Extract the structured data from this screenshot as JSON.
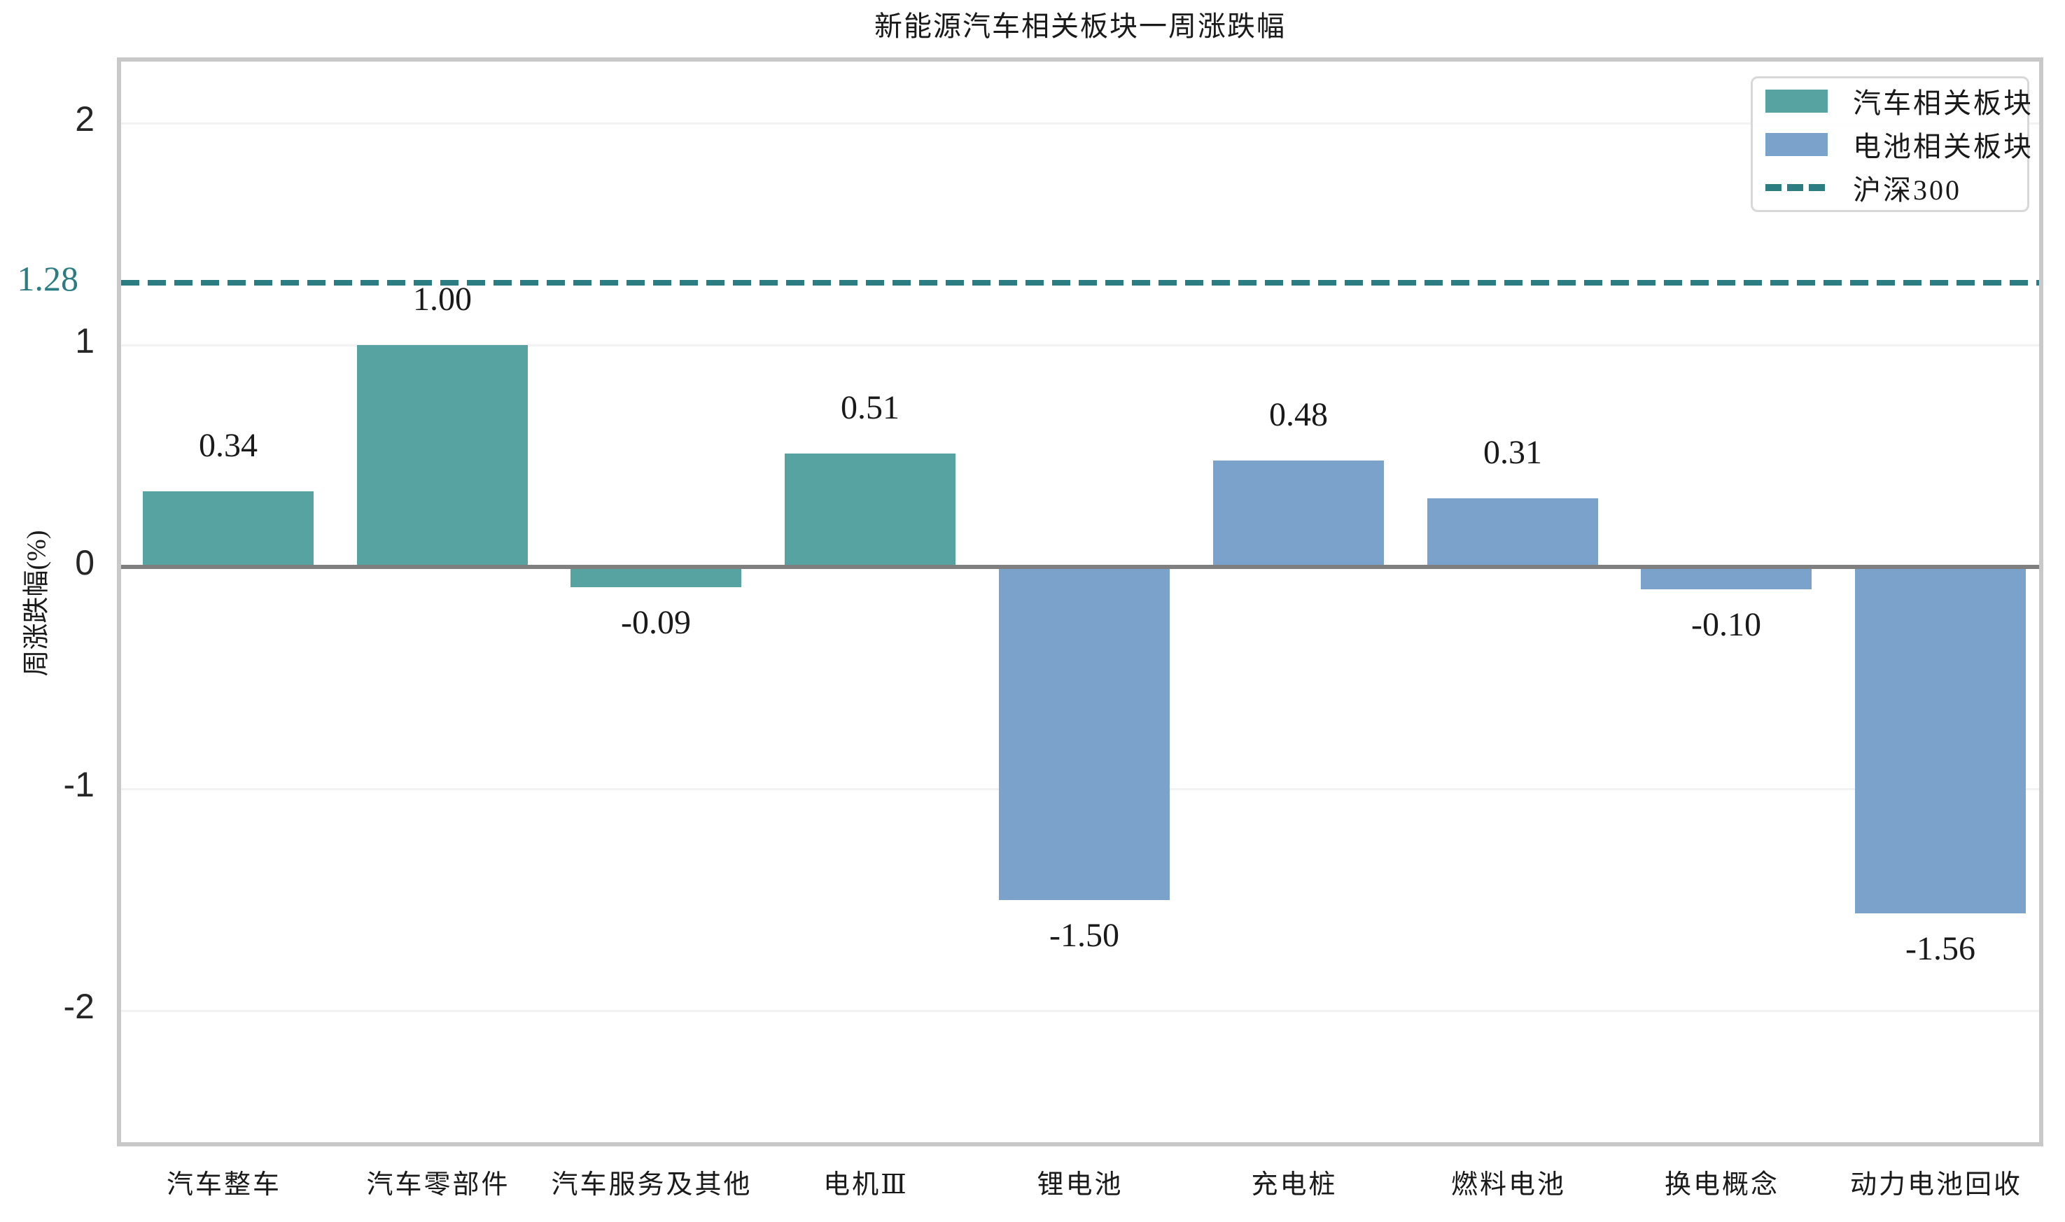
{
  "chart_data": {
    "type": "bar",
    "title": "新能源汽车相关板块一周涨跌幅",
    "ylabel": "周涨跌幅(%)",
    "xlabel": "",
    "y_ticks": [
      2,
      1,
      0,
      -1,
      -2
    ],
    "ylim": [
      -2.63,
      2.28
    ],
    "grid": true,
    "legend_position": "upper right",
    "groups": {
      "auto": {
        "name": "汽车相关板块",
        "color": "#57a3a2"
      },
      "battery": {
        "name": "电池相关板块",
        "color": "#7aa2ca"
      }
    },
    "reference_line": {
      "name": "沪深300",
      "value": 1.28,
      "label": "1.28",
      "color": "#2b7d82",
      "style": "dashed"
    },
    "categories": [
      "汽车整车",
      "汽车零部件",
      "汽车服务及其他",
      "电机Ⅲ",
      "锂电池",
      "充电桩",
      "燃料电池",
      "换电概念",
      "动力电池回收"
    ],
    "bars": [
      {
        "category": "汽车整车",
        "value": 0.34,
        "label": "0.34",
        "group": "auto"
      },
      {
        "category": "汽车零部件",
        "value": 1.0,
        "label": "1.00",
        "group": "auto"
      },
      {
        "category": "汽车服务及其他",
        "value": -0.09,
        "label": "-0.09",
        "group": "auto"
      },
      {
        "category": "电机Ⅲ",
        "value": 0.51,
        "label": "0.51",
        "group": "auto"
      },
      {
        "category": "锂电池",
        "value": -1.5,
        "label": "-1.50",
        "group": "battery"
      },
      {
        "category": "充电桩",
        "value": 0.48,
        "label": "0.48",
        "group": "battery"
      },
      {
        "category": "燃料电池",
        "value": 0.31,
        "label": "0.31",
        "group": "battery"
      },
      {
        "category": "换电概念",
        "value": -0.1,
        "label": "-0.10",
        "group": "battery"
      },
      {
        "category": "动力电池回收",
        "value": -1.56,
        "label": "-1.56",
        "group": "battery"
      }
    ]
  }
}
